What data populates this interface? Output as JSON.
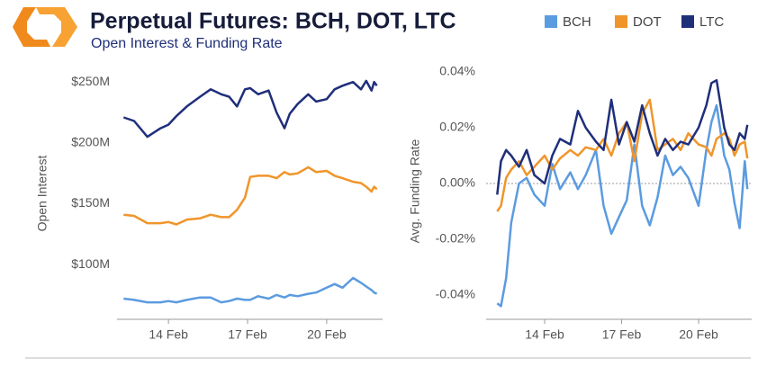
{
  "title": "Perpetual Futures: BCH, DOT, LTC",
  "subtitle": "Open Interest & Funding Rate",
  "chart_data": [
    {
      "type": "line",
      "y_label": "Open Interest",
      "x": [
        12.3,
        12.7,
        13.2,
        13.7,
        14.0,
        14.3,
        14.7,
        15.2,
        15.6,
        16.0,
        16.3,
        16.6,
        16.9,
        17.1,
        17.4,
        17.8,
        18.1,
        18.4,
        18.6,
        18.9,
        19.3,
        19.6,
        20.0,
        20.3,
        20.6,
        21.0,
        21.3,
        21.5,
        21.7,
        21.8,
        21.9
      ],
      "xlim": [
        12.05,
        22.12
      ],
      "xticks": [
        {
          "value": 14,
          "label": "14 Feb"
        },
        {
          "value": 17,
          "label": "17 Feb"
        },
        {
          "value": 20,
          "label": "20 Feb"
        }
      ],
      "ylim": [
        55,
        262
      ],
      "yticks": [
        {
          "value": 100,
          "label": "$100M"
        },
        {
          "value": 150,
          "label": "$150M"
        },
        {
          "value": 200,
          "label": "$200M"
        },
        {
          "value": 250,
          "label": "$250M"
        }
      ],
      "series": [
        {
          "name": "BCH",
          "color": "#5b9be0",
          "values": [
            72,
            71,
            69,
            69,
            70,
            69,
            71,
            73,
            73,
            69,
            70,
            72,
            71,
            71,
            74,
            72,
            75,
            73,
            75,
            74,
            76,
            77,
            81,
            84,
            81,
            89,
            85,
            82,
            79,
            77,
            76
          ]
        },
        {
          "name": "DOT",
          "color": "#f0952a",
          "values": [
            141,
            140,
            134,
            134,
            135,
            133,
            137,
            138,
            141,
            139,
            139,
            145,
            155,
            172,
            173,
            173,
            171,
            176,
            174,
            175,
            180,
            176,
            177,
            173,
            171,
            168,
            167,
            164,
            160,
            164,
            162
          ]
        },
        {
          "name": "LTC",
          "color": "#1f2f7a",
          "values": [
            221,
            218,
            205,
            212,
            215,
            222,
            230,
            238,
            244,
            240,
            238,
            230,
            244,
            245,
            240,
            243,
            225,
            212,
            224,
            232,
            240,
            234,
            236,
            244,
            247,
            250,
            244,
            251,
            243,
            250,
            247
          ]
        }
      ]
    },
    {
      "type": "line",
      "y_label": "Avg. Funding Rate",
      "x": [
        12.15,
        12.3,
        12.5,
        12.7,
        13.0,
        13.3,
        13.6,
        14.0,
        14.3,
        14.6,
        15.0,
        15.3,
        15.6,
        16.0,
        16.3,
        16.6,
        16.9,
        17.2,
        17.5,
        17.8,
        18.1,
        18.4,
        18.7,
        19.0,
        19.3,
        19.6,
        20.0,
        20.3,
        20.5,
        20.7,
        21.0,
        21.2,
        21.4,
        21.6,
        21.8,
        21.9
      ],
      "xlim": [
        11.72,
        22.07
      ],
      "xticks": [
        {
          "value": 14,
          "label": "14 Feb"
        },
        {
          "value": 17,
          "label": "17 Feb"
        },
        {
          "value": 20,
          "label": "20 Feb"
        }
      ],
      "ylim": [
        -0.0487,
        0.0432
      ],
      "yticks": [
        {
          "value": -0.04,
          "label": "-0.04%"
        },
        {
          "value": -0.02,
          "label": "-0.02%"
        },
        {
          "value": 0,
          "label": "0.00%"
        },
        {
          "value": 0.02,
          "label": "0.02%"
        },
        {
          "value": 0.04,
          "label": "0.04%"
        }
      ],
      "series": [
        {
          "color": "#5b9be0",
          "values": [
            -0.043,
            -0.044,
            -0.034,
            -0.014,
            0.0,
            0.002,
            -0.004,
            -0.008,
            0.007,
            -0.002,
            0.004,
            -0.002,
            0.003,
            0.012,
            -0.008,
            -0.018,
            -0.012,
            -0.006,
            0.014,
            -0.008,
            -0.015,
            -0.005,
            0.01,
            0.003,
            0.006,
            0.002,
            -0.008,
            0.012,
            0.022,
            0.028,
            0.01,
            0.005,
            -0.007,
            -0.016,
            0.008,
            -0.002
          ]
        },
        {
          "color": "#f0952a",
          "values": [
            -0.01,
            -0.008,
            0.002,
            0.005,
            0.008,
            0.003,
            0.006,
            0.01,
            0.005,
            0.009,
            0.012,
            0.01,
            0.013,
            0.012,
            0.016,
            0.01,
            0.018,
            0.022,
            0.008,
            0.025,
            0.03,
            0.012,
            0.014,
            0.016,
            0.012,
            0.018,
            0.014,
            0.013,
            0.01,
            0.016,
            0.018,
            0.016,
            0.01,
            0.014,
            0.015,
            0.009
          ]
        },
        {
          "color": "#1f2f7a",
          "values": [
            -0.004,
            0.008,
            0.012,
            0.01,
            0.006,
            0.012,
            0.003,
            0.0,
            0.01,
            0.016,
            0.014,
            0.026,
            0.02,
            0.015,
            0.012,
            0.03,
            0.014,
            0.022,
            0.015,
            0.028,
            0.018,
            0.01,
            0.016,
            0.012,
            0.015,
            0.014,
            0.02,
            0.028,
            0.036,
            0.037,
            0.02,
            0.014,
            0.012,
            0.018,
            0.016,
            0.021
          ]
        }
      ]
    }
  ]
}
